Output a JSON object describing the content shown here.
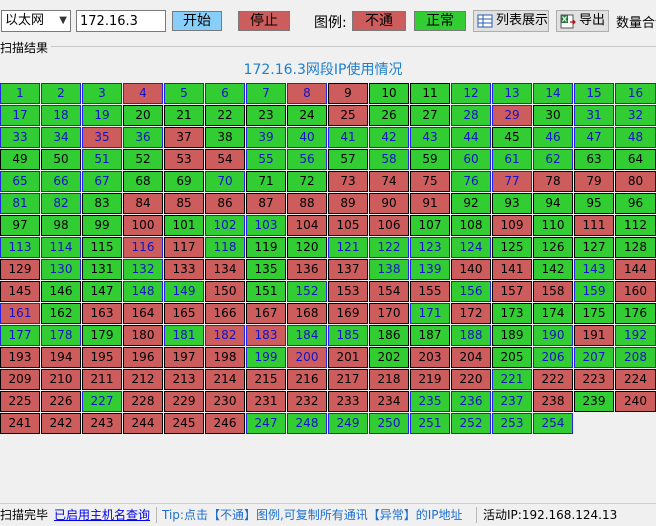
{
  "toolbar": {
    "nic_value": "以太网",
    "ip_value": "172.16.3",
    "start_label": "开始",
    "stop_label": "停止",
    "legend_label": "图例:",
    "legend_fail": "不通",
    "legend_ok": "正常",
    "list_view_label": "列表展示",
    "export_label": "导出",
    "stats_label": "数量合计"
  },
  "results": {
    "group_label": "扫描结果",
    "title": "172.16.3网段IP使用情况"
  },
  "colors": {
    "ok": "#32cd32",
    "fail": "#cd5c5c",
    "start_button": "#87cefa",
    "highlight_border": "#2424e0"
  },
  "grid": {
    "fail_hosts": [
      4,
      8,
      9,
      25,
      29,
      35,
      37,
      53,
      54,
      73,
      74,
      75,
      77,
      78,
      79,
      80,
      84,
      85,
      86,
      87,
      88,
      89,
      90,
      91,
      100,
      104,
      105,
      106,
      109,
      111,
      116,
      117,
      129,
      133,
      134,
      136,
      137,
      140,
      141,
      144,
      145,
      150,
      153,
      154,
      155,
      157,
      158,
      160,
      161,
      163,
      164,
      165,
      166,
      167,
      168,
      169,
      170,
      172,
      180,
      182,
      183,
      191,
      193,
      194,
      195,
      196,
      197,
      198,
      200,
      201,
      203,
      204,
      209,
      210,
      211,
      212,
      213,
      214,
      215,
      216,
      217,
      218,
      219,
      220,
      222,
      223,
      224,
      225,
      226,
      228,
      229,
      230,
      231,
      232,
      233,
      234,
      238,
      240,
      241,
      242,
      243,
      244,
      245,
      246
    ],
    "highlighted_hosts": [
      1,
      2,
      3,
      4,
      5,
      6,
      7,
      8,
      12,
      13,
      14,
      15,
      16,
      17,
      18,
      19,
      28,
      29,
      31,
      32,
      33,
      34,
      35,
      36,
      39,
      40,
      41,
      42,
      43,
      44,
      46,
      47,
      48,
      51,
      55,
      56,
      58,
      60,
      61,
      62,
      65,
      66,
      67,
      70,
      76,
      77,
      81,
      82,
      102,
      103,
      113,
      114,
      116,
      118,
      121,
      122,
      123,
      124,
      130,
      132,
      138,
      139,
      143,
      148,
      149,
      152,
      156,
      159,
      161,
      171,
      177,
      178,
      181,
      182,
      183,
      184,
      185,
      188,
      190,
      192,
      199,
      200,
      206,
      207,
      208,
      221,
      227,
      235,
      236,
      237,
      247,
      248,
      249,
      250,
      251,
      252,
      253,
      254
    ],
    "cells": []
  },
  "statusbar": {
    "status": "扫描完毕",
    "hostname_link": "已启用主机名查询",
    "tip": "Tip:点击【不通】图例,可复制所有通讯【异常】的IP地址",
    "active_ip": "活动IP:192.168.124.13"
  }
}
